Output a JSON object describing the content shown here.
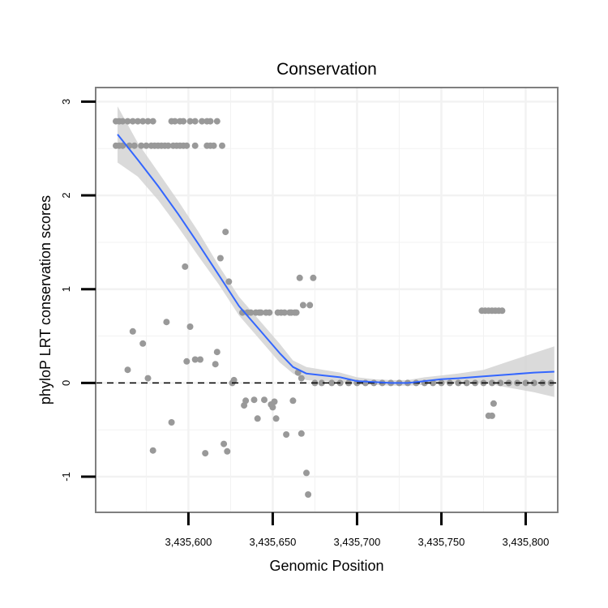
{
  "chart_data": {
    "type": "scatter",
    "title": "Conservation",
    "xlabel": "Genomic Position",
    "ylabel": "phyloP LRT conservation scores",
    "xlim": [
      3435545,
      3435819
    ],
    "ylim": [
      -1.38,
      3.15
    ],
    "grid": true,
    "x_ticks": [
      3435600,
      3435650,
      3435700,
      3435750,
      3435800
    ],
    "x_tick_labels": [
      "3,435,600",
      "3,435,650",
      "3,435,700",
      "3,435,750",
      "3,435,800"
    ],
    "y_ticks": [
      -1,
      0,
      1,
      2,
      3
    ],
    "y_tick_labels": [
      "-1",
      "0",
      "1",
      "2",
      "3"
    ],
    "reference_line": {
      "y": 0,
      "style": "dashed"
    },
    "colors": {
      "points": "#999999",
      "smooth": "#3366FF",
      "ribbon": "#d3d3d3",
      "grid": "#f2f2f2",
      "frame": "#7f7f7f"
    },
    "points": [
      [
        3435557,
        2.79
      ],
      [
        3435559,
        2.79
      ],
      [
        3435561,
        2.79
      ],
      [
        3435564,
        2.79
      ],
      [
        3435567,
        2.79
      ],
      [
        3435570,
        2.79
      ],
      [
        3435573,
        2.79
      ],
      [
        3435576,
        2.79
      ],
      [
        3435579,
        2.79
      ],
      [
        3435590,
        2.79
      ],
      [
        3435592,
        2.79
      ],
      [
        3435595,
        2.79
      ],
      [
        3435597,
        2.79
      ],
      [
        3435601,
        2.79
      ],
      [
        3435604,
        2.79
      ],
      [
        3435608,
        2.79
      ],
      [
        3435611,
        2.79
      ],
      [
        3435613,
        2.79
      ],
      [
        3435617,
        2.79
      ],
      [
        3435557,
        2.53
      ],
      [
        3435559,
        2.53
      ],
      [
        3435561,
        2.53
      ],
      [
        3435565,
        2.53
      ],
      [
        3435568,
        2.53
      ],
      [
        3435572,
        2.53
      ],
      [
        3435575,
        2.53
      ],
      [
        3435578,
        2.53
      ],
      [
        3435580,
        2.53
      ],
      [
        3435582,
        2.53
      ],
      [
        3435584,
        2.53
      ],
      [
        3435586,
        2.53
      ],
      [
        3435588,
        2.53
      ],
      [
        3435591,
        2.53
      ],
      [
        3435593,
        2.53
      ],
      [
        3435595,
        2.53
      ],
      [
        3435597,
        2.53
      ],
      [
        3435599,
        2.53
      ],
      [
        3435604,
        2.53
      ],
      [
        3435611,
        2.53
      ],
      [
        3435613,
        2.53
      ],
      [
        3435615,
        2.53
      ],
      [
        3435620,
        2.53
      ],
      [
        3435564,
        0.14
      ],
      [
        3435567,
        0.55
      ],
      [
        3435573,
        0.42
      ],
      [
        3435576,
        0.05
      ],
      [
        3435579,
        -0.72
      ],
      [
        3435587,
        0.65
      ],
      [
        3435590,
        -0.42
      ],
      [
        3435598,
        1.24
      ],
      [
        3435599,
        0.23
      ],
      [
        3435601,
        0.6
      ],
      [
        3435604,
        0.25
      ],
      [
        3435607,
        0.25
      ],
      [
        3435610,
        -0.75
      ],
      [
        3435616,
        0.2
      ],
      [
        3435617,
        0.33
      ],
      [
        3435619,
        1.33
      ],
      [
        3435621,
        -0.65
      ],
      [
        3435622,
        1.61
      ],
      [
        3435623,
        -0.73
      ],
      [
        3435624,
        1.08
      ],
      [
        3435626,
        0.0
      ],
      [
        3435627,
        0.03
      ],
      [
        3435632,
        0.75
      ],
      [
        3435633,
        -0.24
      ],
      [
        3435634,
        -0.19
      ],
      [
        3435635,
        0.75
      ],
      [
        3435637,
        0.75
      ],
      [
        3435639,
        -0.18
      ],
      [
        3435640,
        0.75
      ],
      [
        3435641,
        -0.38
      ],
      [
        3435642,
        0.75
      ],
      [
        3435643,
        0.75
      ],
      [
        3435645,
        -0.18
      ],
      [
        3435646,
        0.75
      ],
      [
        3435648,
        0.75
      ],
      [
        3435649,
        -0.23
      ],
      [
        3435650,
        -0.26
      ],
      [
        3435651,
        -0.2
      ],
      [
        3435652,
        -0.38
      ],
      [
        3435653,
        0.75
      ],
      [
        3435655,
        0.75
      ],
      [
        3435657,
        0.75
      ],
      [
        3435658,
        -0.55
      ],
      [
        3435660,
        0.75
      ],
      [
        3435661,
        0.75
      ],
      [
        3435662,
        -0.19
      ],
      [
        3435663,
        0.75
      ],
      [
        3435664,
        0.75
      ],
      [
        3435665,
        0.11
      ],
      [
        3435666,
        1.12
      ],
      [
        3435667,
        -0.54
      ],
      [
        3435667,
        0.05
      ],
      [
        3435668,
        0.83
      ],
      [
        3435670,
        -0.96
      ],
      [
        3435671,
        -1.19
      ],
      [
        3435672,
        0.83
      ],
      [
        3435674,
        1.12
      ],
      [
        3435675,
        0.0
      ],
      [
        3435679,
        0.0
      ],
      [
        3435685,
        0.0
      ],
      [
        3435690,
        0.0
      ],
      [
        3435695,
        0.0
      ],
      [
        3435700,
        0.0
      ],
      [
        3435705,
        0.0
      ],
      [
        3435710,
        0.0
      ],
      [
        3435715,
        0.0
      ],
      [
        3435720,
        0.0
      ],
      [
        3435725,
        0.0
      ],
      [
        3435730,
        0.0
      ],
      [
        3435735,
        0.0
      ],
      [
        3435740,
        0.0
      ],
      [
        3435745,
        0.0
      ],
      [
        3435750,
        0.0
      ],
      [
        3435755,
        0.0
      ],
      [
        3435760,
        0.0
      ],
      [
        3435765,
        0.0
      ],
      [
        3435770,
        0.0
      ],
      [
        3435775,
        0.0
      ],
      [
        3435780,
        0.0
      ],
      [
        3435785,
        0.0
      ],
      [
        3435790,
        0.0
      ],
      [
        3435795,
        0.0
      ],
      [
        3435800,
        0.0
      ],
      [
        3435805,
        0.0
      ],
      [
        3435810,
        0.0
      ],
      [
        3435815,
        0.0
      ],
      [
        3435774,
        0.77
      ],
      [
        3435776,
        0.77
      ],
      [
        3435778,
        0.77
      ],
      [
        3435780,
        0.77
      ],
      [
        3435782,
        0.77
      ],
      [
        3435784,
        0.77
      ],
      [
        3435786,
        0.77
      ],
      [
        3435778,
        -0.35
      ],
      [
        3435780,
        -0.35
      ],
      [
        3435781,
        -0.22
      ]
    ],
    "smooth": {
      "method": "loess",
      "x": [
        3435558,
        3435570,
        3435582,
        3435594,
        3435606,
        3435618,
        3435630,
        3435642,
        3435654,
        3435662,
        3435670,
        3435680,
        3435690,
        3435700,
        3435710,
        3435720,
        3435730,
        3435740,
        3435750,
        3435760,
        3435775,
        3435790,
        3435805,
        3435817
      ],
      "y": [
        2.65,
        2.38,
        2.1,
        1.8,
        1.48,
        1.15,
        0.82,
        0.57,
        0.32,
        0.17,
        0.1,
        0.08,
        0.06,
        0.02,
        0.01,
        0.0,
        0.0,
        0.02,
        0.04,
        0.05,
        0.07,
        0.09,
        0.11,
        0.12
      ],
      "lower": [
        2.35,
        2.2,
        1.95,
        1.66,
        1.35,
        1.05,
        0.72,
        0.47,
        0.22,
        0.1,
        0.03,
        0.02,
        0.01,
        -0.02,
        -0.02,
        -0.03,
        -0.03,
        -0.02,
        0.0,
        0.0,
        0.0,
        -0.05,
        -0.1,
        -0.15
      ],
      "upper": [
        2.95,
        2.56,
        2.25,
        1.94,
        1.61,
        1.25,
        0.92,
        0.67,
        0.42,
        0.24,
        0.17,
        0.14,
        0.11,
        0.06,
        0.04,
        0.03,
        0.03,
        0.06,
        0.08,
        0.1,
        0.14,
        0.23,
        0.32,
        0.39
      ]
    }
  }
}
